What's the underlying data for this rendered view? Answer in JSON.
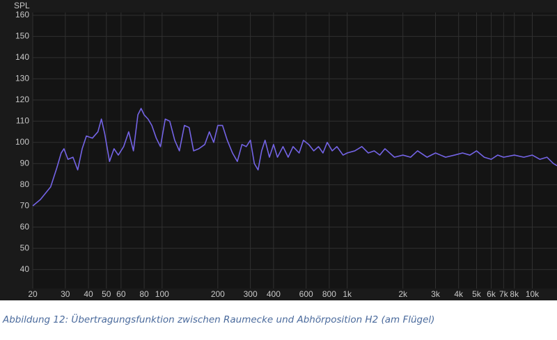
{
  "chart_data": {
    "type": "line",
    "y_label": "SPL",
    "caption": "Abbildung 12: Übertragungsfunktion zwischen Raumecke und Abhörposition H2 (am Flügel)",
    "x": [
      20,
      22,
      25,
      27,
      28.5,
      29.5,
      31,
      33,
      35,
      37,
      39,
      42,
      45,
      47,
      49,
      52,
      55,
      58,
      62,
      66,
      70,
      74,
      77,
      80,
      84,
      88,
      93,
      98,
      104,
      110,
      117,
      124,
      132,
      140,
      148,
      158,
      170,
      180,
      190,
      200,
      212,
      225,
      240,
      255,
      270,
      285,
      300,
      315,
      330,
      345,
      360,
      380,
      400,
      420,
      450,
      480,
      510,
      550,
      580,
      620,
      660,
      700,
      740,
      780,
      830,
      880,
      950,
      1000,
      1100,
      1200,
      1300,
      1400,
      1500,
      1600,
      1800,
      2000,
      2200,
      2400,
      2700,
      3000,
      3400,
      3800,
      4200,
      4600,
      5000,
      5500,
      6000,
      6500,
      7000,
      8000,
      9000,
      10000,
      11000,
      12000,
      13000,
      13600
    ],
    "series": [
      {
        "name": "SPL",
        "color": "#7464e6",
        "values": [
          70,
          73,
          79,
          88,
          95,
          97,
          92,
          93,
          87,
          97,
          103,
          102,
          105,
          111,
          104,
          91,
          97,
          94,
          98,
          105,
          96,
          113,
          116,
          113,
          111,
          108,
          102,
          98,
          111,
          110,
          101,
          96,
          108,
          107,
          96,
          97,
          99,
          105,
          100,
          108,
          108,
          101,
          95,
          91,
          99,
          98,
          101,
          90,
          87,
          96,
          101,
          93,
          99,
          93,
          98,
          93,
          98,
          95,
          101,
          99,
          96,
          98,
          95,
          100,
          96,
          98,
          94,
          95,
          96,
          98,
          95,
          96,
          94,
          97,
          93,
          94,
          93,
          96,
          93,
          95,
          93,
          94,
          95,
          94,
          96,
          93,
          92,
          94,
          93,
          94,
          93,
          94,
          92,
          93,
          90,
          89
        ]
      }
    ],
    "xlim": [
      20,
      13600
    ],
    "log_x": true,
    "xticks": [
      20,
      30,
      40,
      50,
      60,
      80,
      100,
      200,
      300,
      400,
      600,
      800,
      {
        "value": 1000,
        "label": "1k"
      },
      {
        "value": 2000,
        "label": "2k"
      },
      {
        "value": 3000,
        "label": "3k"
      },
      {
        "value": 4000,
        "label": "4k"
      },
      {
        "value": 5000,
        "label": "5k"
      },
      {
        "value": 6000,
        "label": "6k"
      },
      {
        "value": 7000,
        "label": "7k"
      },
      {
        "value": 8000,
        "label": "8k"
      },
      {
        "value": 10000,
        "label": "10k"
      }
    ],
    "ylim": [
      31,
      161.3
    ],
    "yticks": [
      40,
      50,
      60,
      70,
      80,
      90,
      100,
      110,
      120,
      130,
      140,
      150,
      160
    ],
    "grid": true
  }
}
